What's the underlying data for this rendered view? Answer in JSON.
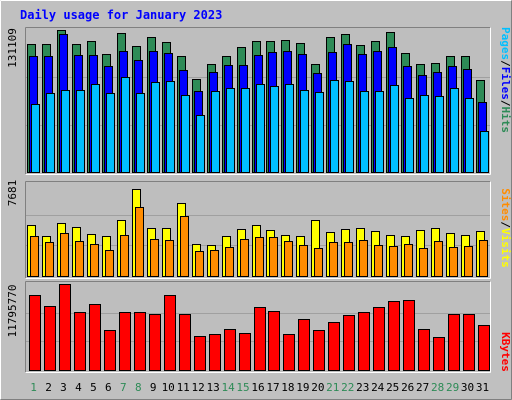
{
  "title": "Daily usage for January 2023",
  "colors": {
    "background": "#c0c0c0",
    "frame_light": "#ffffff",
    "frame_dark": "#808080",
    "panel": "#bebebe",
    "title": "#0000ff",
    "hits": "#2e8b57",
    "files": "#0000ff",
    "pages": "#00bfff",
    "visits": "#ffff00",
    "sites": "#ff8c00",
    "kbytes": "#ff0000",
    "day_normal": "#000000",
    "day_weekend": "#2e8b57",
    "label_sep": "#000000"
  },
  "days": [
    "1",
    "2",
    "3",
    "4",
    "5",
    "6",
    "7",
    "8",
    "9",
    "10",
    "11",
    "12",
    "13",
    "14",
    "15",
    "16",
    "17",
    "18",
    "19",
    "20",
    "21",
    "22",
    "23",
    "24",
    "25",
    "26",
    "27",
    "28",
    "29",
    "30",
    "31"
  ],
  "weekend_days": [
    1,
    7,
    8,
    14,
    15,
    21,
    22,
    28,
    29
  ],
  "chart_data": [
    {
      "type": "bar",
      "panel": "top",
      "max_label": "131109",
      "ymax": 131109,
      "legend": [
        {
          "name": "Pages",
          "color": "#00bfff"
        },
        {
          "name": "/",
          "color": "#000000"
        },
        {
          "name": "Files",
          "color": "#0000ff"
        },
        {
          "name": "/",
          "color": "#000000"
        },
        {
          "name": "Hits",
          "color": "#2e8b57"
        }
      ],
      "series": [
        {
          "name": "Hits",
          "values": [
            118000,
            118000,
            131000,
            118000,
            121000,
            109000,
            128000,
            116000,
            125000,
            120000,
            107000,
            86000,
            100000,
            107000,
            115000,
            121000,
            121000,
            122000,
            119000,
            100000,
            125000,
            127000,
            117000,
            121000,
            129000,
            110000,
            100000,
            101000,
            107000,
            107000,
            85000
          ]
        },
        {
          "name": "Files",
          "values": [
            107000,
            107000,
            127000,
            108000,
            108000,
            98000,
            112000,
            103000,
            112000,
            110000,
            94000,
            75000,
            92000,
            99000,
            99000,
            108000,
            111000,
            112000,
            109000,
            91000,
            111000,
            118000,
            109000,
            112000,
            115000,
            98000,
            90000,
            92000,
            98000,
            95000,
            65000
          ]
        },
        {
          "name": "Pages",
          "values": [
            63000,
            73000,
            76000,
            76000,
            81000,
            73000,
            88000,
            73000,
            83000,
            84000,
            71000,
            53000,
            75000,
            78000,
            78000,
            81000,
            79000,
            81000,
            76000,
            74000,
            85000,
            84000,
            75000,
            75000,
            80000,
            68000,
            71000,
            70000,
            78000,
            68000,
            38000
          ]
        }
      ]
    },
    {
      "type": "bar",
      "panel": "middle",
      "max_label": "7681",
      "ymax": 7681,
      "legend": [
        {
          "name": "Sites",
          "color": "#ff8c00"
        },
        {
          "name": "/",
          "color": "#000000"
        },
        {
          "name": "Visits",
          "color": "#ffff00"
        }
      ],
      "series": [
        {
          "name": "Visits",
          "values": [
            4280,
            3350,
            4410,
            4100,
            3470,
            3370,
            4670,
            7270,
            3990,
            3970,
            6120,
            2690,
            2620,
            3380,
            3940,
            4240,
            3810,
            3410,
            3320,
            4710,
            3640,
            3960,
            4000,
            3770,
            3400,
            3340,
            3810,
            3970,
            3570,
            3460,
            3740
          ]
        },
        {
          "name": "Sites",
          "values": [
            3370,
            2850,
            3600,
            2900,
            2700,
            2200,
            3420,
            5800,
            3110,
            3030,
            4980,
            2080,
            2210,
            2450,
            3110,
            3270,
            3240,
            2930,
            2580,
            2370,
            2820,
            2820,
            3030,
            2600,
            2520,
            2700,
            2310,
            2920,
            2440,
            2520,
            3020
          ]
        }
      ]
    },
    {
      "type": "bar",
      "panel": "bottom",
      "max_label": "11795770",
      "ymax": 11795770,
      "legend": [
        {
          "name": "KBytes",
          "color": "#ff0000"
        }
      ],
      "series": [
        {
          "name": "KBytes",
          "values": [
            10270000,
            8720000,
            11790000,
            7910000,
            9010000,
            5440000,
            8020000,
            8020000,
            7690000,
            10270000,
            7650000,
            4730000,
            4890000,
            5680000,
            5120000,
            8630000,
            8060000,
            4920000,
            6990000,
            5550000,
            6600000,
            7610000,
            7930000,
            8630000,
            9460000,
            9570000,
            5580000,
            4560000,
            7740000,
            7700000,
            6140000
          ]
        }
      ]
    }
  ]
}
